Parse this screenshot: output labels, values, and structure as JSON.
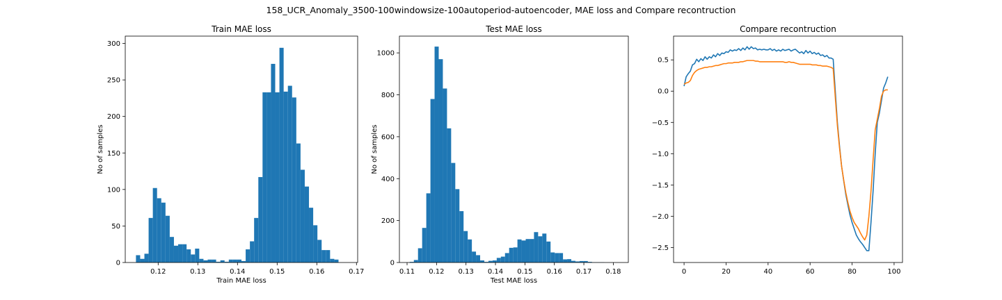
{
  "suptitle": "158_UCR_Anomaly_3500-100windowsize-100autoperiod-autoencoder, MAE loss and Compare recontruction",
  "colors": {
    "series1": "#1f77b4",
    "series2": "#ff7f0e",
    "axis": "#000000"
  },
  "chart_data": [
    {
      "type": "bar",
      "title": "Train MAE loss",
      "xlabel": "Train MAE loss",
      "ylabel": "No of samples",
      "xlim": [
        0.1117,
        0.1703
      ],
      "ylim": [
        0,
        310
      ],
      "xticks": [
        0.12,
        0.13,
        0.14,
        0.15,
        0.16,
        0.17
      ],
      "xtick_labels": [
        "0.12",
        "0.13",
        "0.14",
        "0.15",
        "0.16",
        "0.17"
      ],
      "yticks": [
        0,
        50,
        100,
        150,
        200,
        250,
        300
      ],
      "ytick_labels": [
        "0",
        "50",
        "100",
        "150",
        "200",
        "250",
        "300"
      ],
      "bins": {
        "start": 0.1144,
        "width": 0.001064
      },
      "values": [
        10,
        5,
        12,
        61,
        102,
        88,
        82,
        64,
        35,
        23,
        25,
        25,
        18,
        11,
        19,
        5,
        3,
        4,
        4,
        1,
        3,
        1,
        4,
        4,
        4,
        2,
        18,
        29,
        61,
        117,
        233,
        233,
        272,
        233,
        294,
        234,
        242,
        226,
        163,
        127,
        104,
        75,
        51,
        31,
        17,
        17,
        5,
        4
      ]
    },
    {
      "type": "bar",
      "title": "Test MAE loss",
      "xlabel": "Test MAE loss",
      "ylabel": "No of samples",
      "xlim": [
        0.1074,
        0.1851
      ],
      "ylim": [
        0,
        1080
      ],
      "xticks": [
        0.11,
        0.12,
        0.13,
        0.14,
        0.15,
        0.16,
        0.17,
        0.18
      ],
      "xtick_labels": [
        "0.11",
        "0.12",
        "0.13",
        "0.14",
        "0.15",
        "0.16",
        "0.17",
        "0.18"
      ],
      "yticks": [
        0,
        200,
        400,
        600,
        800,
        1000
      ],
      "ytick_labels": [
        "0",
        "200",
        "400",
        "600",
        "800",
        "1000"
      ],
      "bins": {
        "start": 0.1109,
        "width": 0.001406
      },
      "values": [
        3,
        12,
        68,
        165,
        330,
        780,
        1030,
        970,
        830,
        640,
        475,
        350,
        245,
        150,
        110,
        52,
        35,
        10,
        3,
        8,
        10,
        22,
        28,
        45,
        70,
        72,
        110,
        105,
        112,
        112,
        145,
        125,
        138,
        100,
        48,
        45,
        45,
        15,
        16,
        8,
        5,
        7,
        7,
        3,
        1,
        1,
        1
      ]
    },
    {
      "type": "line",
      "title": "Compare recontruction",
      "xlabel": "",
      "ylabel": "",
      "xlim": [
        -5,
        104
      ],
      "ylim": [
        -2.74,
        0.88
      ],
      "xticks": [
        0,
        20,
        40,
        60,
        80,
        100
      ],
      "xtick_labels": [
        "0",
        "20",
        "40",
        "60",
        "80",
        "100"
      ],
      "yticks": [
        0.5,
        0.0,
        -0.5,
        -1.0,
        -1.5,
        -2.0,
        -2.5
      ],
      "ytick_labels": [
        "0.5",
        "0.0",
        "−0.5",
        "−1.0",
        "−1.5",
        "−2.0",
        "−2.5"
      ],
      "series": [
        {
          "color": "#1f77b4",
          "values": [
            0.08,
            0.23,
            0.28,
            0.32,
            0.42,
            0.44,
            0.51,
            0.47,
            0.52,
            0.49,
            0.55,
            0.51,
            0.55,
            0.53,
            0.58,
            0.55,
            0.6,
            0.57,
            0.61,
            0.6,
            0.63,
            0.62,
            0.66,
            0.64,
            0.66,
            0.65,
            0.68,
            0.65,
            0.69,
            0.66,
            0.71,
            0.67,
            0.71,
            0.68,
            0.69,
            0.66,
            0.67,
            0.66,
            0.67,
            0.66,
            0.66,
            0.68,
            0.65,
            0.67,
            0.64,
            0.66,
            0.64,
            0.67,
            0.65,
            0.66,
            0.67,
            0.64,
            0.66,
            0.67,
            0.64,
            0.61,
            0.63,
            0.6,
            0.65,
            0.61,
            0.64,
            0.6,
            0.62,
            0.59,
            0.61,
            0.57,
            0.58,
            0.55,
            0.57,
            0.53,
            0.53,
            0.51,
            0.0,
            -0.5,
            -0.87,
            -1.2,
            -1.43,
            -1.65,
            -1.82,
            -1.98,
            -2.1,
            -2.2,
            -2.3,
            -2.36,
            -2.41,
            -2.45,
            -2.5,
            -2.55,
            -2.55,
            -2.1,
            -1.6,
            -1.0,
            -0.5,
            -0.35,
            -0.15,
            0.05,
            0.13,
            0.23
          ]
        },
        {
          "color": "#ff7f0e",
          "values": [
            0.11,
            0.13,
            0.14,
            0.17,
            0.25,
            0.3,
            0.33,
            0.35,
            0.36,
            0.37,
            0.38,
            0.38,
            0.39,
            0.39,
            0.4,
            0.41,
            0.41,
            0.42,
            0.43,
            0.44,
            0.44,
            0.45,
            0.45,
            0.45,
            0.46,
            0.46,
            0.46,
            0.47,
            0.47,
            0.48,
            0.49,
            0.49,
            0.49,
            0.49,
            0.48,
            0.48,
            0.47,
            0.47,
            0.47,
            0.47,
            0.47,
            0.47,
            0.47,
            0.47,
            0.47,
            0.47,
            0.47,
            0.47,
            0.46,
            0.46,
            0.47,
            0.46,
            0.46,
            0.45,
            0.44,
            0.43,
            0.43,
            0.43,
            0.43,
            0.43,
            0.43,
            0.42,
            0.42,
            0.42,
            0.41,
            0.41,
            0.4,
            0.4,
            0.4,
            0.39,
            0.38,
            0.36,
            -0.1,
            -0.55,
            -0.9,
            -1.2,
            -1.42,
            -1.62,
            -1.78,
            -1.92,
            -2.02,
            -2.1,
            -2.15,
            -2.2,
            -2.27,
            -2.33,
            -2.38,
            -2.3,
            -2.0,
            -1.6,
            -1.1,
            -0.62,
            -0.45,
            -0.28,
            -0.08,
            0.0,
            0.02,
            0.02
          ]
        }
      ]
    }
  ]
}
